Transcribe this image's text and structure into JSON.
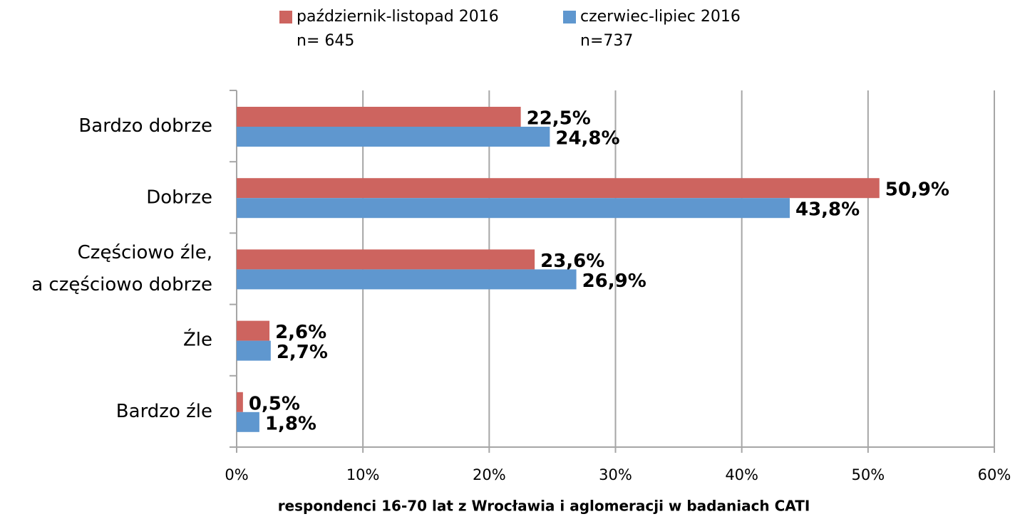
{
  "chart_data": {
    "type": "hbar",
    "categories": [
      "Bardzo dobrze",
      "Dobrze",
      "Częściowo źle,\na częściowo dobrze",
      "Źle",
      "Bardzo źle"
    ],
    "series": [
      {
        "name": "październik-listopad 2016\nn= 645",
        "color": "#cd645f",
        "values": [
          22.5,
          50.9,
          23.6,
          2.6,
          0.5
        ],
        "value_labels": [
          "22,5%",
          "50,9%",
          "23,6%",
          "2,6%",
          "0,5%"
        ]
      },
      {
        "name": "czerwiec-lipiec 2016\nn=737",
        "color": "#5f97cf",
        "values": [
          24.8,
          43.8,
          26.9,
          2.7,
          1.8
        ],
        "value_labels": [
          "24,8%",
          "43,8%",
          "26,9%",
          "2,7%",
          "1,8%"
        ]
      }
    ],
    "xlim": [
      0,
      60
    ],
    "xticks": [
      {
        "value": 0,
        "label": "0%"
      },
      {
        "value": 10,
        "label": "10%"
      },
      {
        "value": 20,
        "label": "20%"
      },
      {
        "value": 30,
        "label": "30%"
      },
      {
        "value": 40,
        "label": "40%"
      },
      {
        "value": 50,
        "label": "50%"
      },
      {
        "value": 60,
        "label": "60%"
      }
    ],
    "xlabel": "respondenci 16-70 lat z Wrocławia i aglomeracji w badaniach CATI",
    "grid": true,
    "legend": "top"
  }
}
